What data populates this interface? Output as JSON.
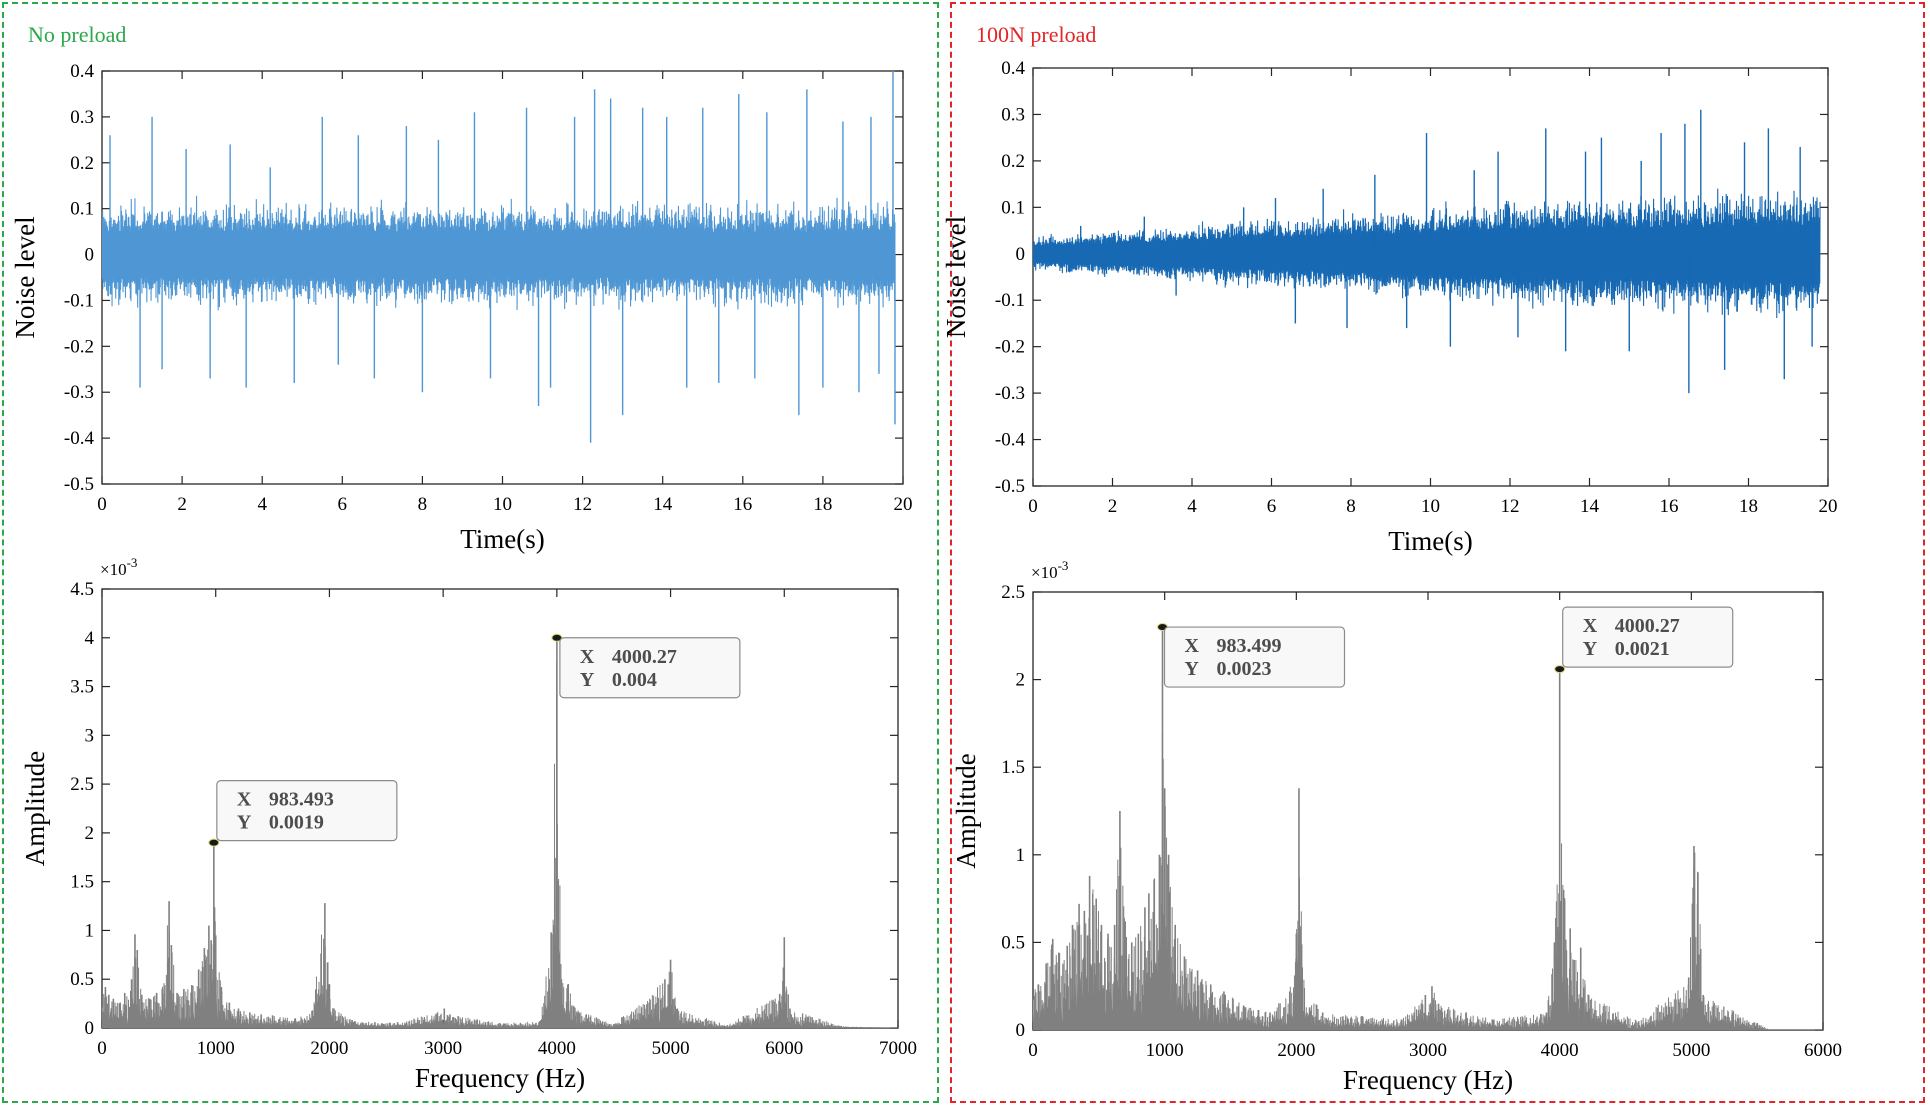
{
  "panels": [
    {
      "label": "No preload",
      "color": "#2aa84a"
    },
    {
      "label": "100N preload",
      "color": "#e0262a"
    }
  ],
  "chart_data": [
    {
      "panel": 0,
      "type": "line",
      "xlabel": "Time(s)",
      "ylabel": "Noise level",
      "xlim": [
        0,
        20
      ],
      "ylim": [
        -0.5,
        0.4
      ],
      "xticks": [
        0,
        2,
        4,
        6,
        8,
        10,
        12,
        14,
        16,
        18,
        20
      ],
      "yticks": [
        -0.5,
        -0.4,
        -0.3,
        -0.2,
        -0.1,
        0,
        0.1,
        0.2,
        0.3,
        0.4
      ],
      "series_color": "#4f97d4",
      "x_end": 19.8,
      "base_amplitude": [
        [
          0,
          0.09
        ],
        [
          19.8,
          0.09
        ]
      ],
      "spikes": [
        [
          0.2,
          0.26
        ],
        [
          0.95,
          -0.29
        ],
        [
          1.25,
          0.3
        ],
        [
          1.5,
          -0.25
        ],
        [
          2.1,
          0.23
        ],
        [
          2.7,
          -0.27
        ],
        [
          3.2,
          0.24
        ],
        [
          3.6,
          -0.29
        ],
        [
          4.2,
          0.19
        ],
        [
          4.8,
          -0.28
        ],
        [
          5.5,
          0.3
        ],
        [
          5.9,
          -0.24
        ],
        [
          6.4,
          0.26
        ],
        [
          6.8,
          -0.27
        ],
        [
          7.6,
          0.28
        ],
        [
          8.0,
          -0.3
        ],
        [
          8.4,
          0.25
        ],
        [
          9.3,
          0.31
        ],
        [
          9.7,
          -0.27
        ],
        [
          10.6,
          0.32
        ],
        [
          10.9,
          -0.33
        ],
        [
          11.2,
          -0.29
        ],
        [
          11.8,
          0.3
        ],
        [
          12.2,
          -0.41
        ],
        [
          12.3,
          0.36
        ],
        [
          12.7,
          0.34
        ],
        [
          13.0,
          -0.35
        ],
        [
          13.5,
          0.32
        ],
        [
          14.1,
          0.3
        ],
        [
          14.6,
          -0.29
        ],
        [
          15.0,
          0.32
        ],
        [
          15.4,
          -0.28
        ],
        [
          15.9,
          0.35
        ],
        [
          16.3,
          -0.27
        ],
        [
          16.6,
          0.31
        ],
        [
          17.4,
          -0.35
        ],
        [
          17.6,
          0.36
        ],
        [
          18.0,
          -0.29
        ],
        [
          18.5,
          0.29
        ],
        [
          18.9,
          -0.3
        ],
        [
          19.2,
          0.3
        ],
        [
          19.4,
          -0.26
        ],
        [
          19.75,
          0.4
        ],
        [
          19.8,
          -0.37
        ]
      ]
    },
    {
      "panel": 0,
      "type": "area",
      "xlabel": "Frequency (Hz)",
      "ylabel": "Amplitude",
      "exponent_label": "×10",
      "exponent_power": "-3",
      "xlim": [
        0,
        7000
      ],
      "ylim": [
        0,
        4.5
      ],
      "xticks": [
        0,
        1000,
        2000,
        3000,
        4000,
        5000,
        6000,
        7000
      ],
      "yticks": [
        0,
        0.5,
        1,
        1.5,
        2,
        2.5,
        3,
        3.5,
        4,
        4.5
      ],
      "series_color": "#808080",
      "peaks": [
        [
          30,
          0.42
        ],
        [
          60,
          0.34
        ],
        [
          100,
          0.3
        ],
        [
          160,
          0.26
        ],
        [
          200,
          0.36
        ],
        [
          260,
          0.5
        ],
        [
          290,
          0.96
        ],
        [
          310,
          0.8
        ],
        [
          350,
          0.34
        ],
        [
          420,
          0.3
        ],
        [
          480,
          0.36
        ],
        [
          530,
          0.4
        ],
        [
          590,
          1.3
        ],
        [
          610,
          0.85
        ],
        [
          660,
          0.36
        ],
        [
          720,
          0.4
        ],
        [
          790,
          0.44
        ],
        [
          850,
          0.6
        ],
        [
          900,
          0.82
        ],
        [
          940,
          1.05
        ],
        [
          960,
          0.9
        ],
        [
          983.493,
          1.9
        ],
        [
          1000,
          0.95
        ],
        [
          1050,
          0.42
        ],
        [
          1120,
          0.26
        ],
        [
          1200,
          0.2
        ],
        [
          1300,
          0.16
        ],
        [
          1400,
          0.14
        ],
        [
          1500,
          0.13
        ],
        [
          1700,
          0.1
        ],
        [
          1850,
          0.18
        ],
        [
          1960,
          1.28
        ],
        [
          2000,
          0.45
        ],
        [
          2040,
          0.2
        ],
        [
          2200,
          0.08
        ],
        [
          2400,
          0.06
        ],
        [
          2600,
          0.06
        ],
        [
          2950,
          0.16
        ],
        [
          3010,
          0.2
        ],
        [
          3060,
          0.14
        ],
        [
          3500,
          0.05
        ],
        [
          3850,
          0.07
        ],
        [
          3950,
          0.98
        ],
        [
          4000.27,
          4.0
        ],
        [
          4040,
          0.5
        ],
        [
          4100,
          0.45
        ],
        [
          4150,
          0.22
        ],
        [
          4500,
          0.04
        ],
        [
          4950,
          0.5
        ],
        [
          5000,
          0.7
        ],
        [
          5060,
          0.2
        ],
        [
          5500,
          0.03
        ],
        [
          5960,
          0.35
        ],
        [
          6000,
          0.93
        ],
        [
          6050,
          0.2
        ],
        [
          6500,
          0.02
        ],
        [
          7000,
          0.0
        ]
      ],
      "annotations": [
        {
          "x_label": "X",
          "x_value": "983.493",
          "y_label": "Y",
          "y_value": "0.0019",
          "x": 983.493,
          "y": 1.9
        },
        {
          "x_label": "X",
          "x_value": "4000.27",
          "y_label": "Y",
          "y_value": "0.004",
          "x": 4000.27,
          "y": 4.0
        }
      ]
    },
    {
      "panel": 1,
      "type": "line",
      "xlabel": "Time(s)",
      "ylabel": "Noise level",
      "xlim": [
        0,
        20
      ],
      "ylim": [
        -0.5,
        0.4
      ],
      "xticks": [
        0,
        2,
        4,
        6,
        8,
        10,
        12,
        14,
        16,
        18,
        20
      ],
      "yticks": [
        -0.5,
        -0.4,
        -0.3,
        -0.2,
        -0.1,
        0,
        0.1,
        0.2,
        0.3,
        0.4
      ],
      "series_color": "#1769b3",
      "x_end": 19.8,
      "base_amplitude": [
        [
          0,
          0.03
        ],
        [
          6,
          0.06
        ],
        [
          12,
          0.09
        ],
        [
          19.8,
          0.11
        ]
      ],
      "spikes": [
        [
          1.2,
          0.06
        ],
        [
          2.8,
          0.08
        ],
        [
          3.6,
          -0.09
        ],
        [
          5.3,
          0.1
        ],
        [
          6.1,
          0.12
        ],
        [
          6.6,
          -0.15
        ],
        [
          7.3,
          0.14
        ],
        [
          7.9,
          -0.16
        ],
        [
          8.6,
          0.17
        ],
        [
          9.4,
          -0.16
        ],
        [
          9.9,
          0.26
        ],
        [
          10.5,
          -0.2
        ],
        [
          11.1,
          0.18
        ],
        [
          11.7,
          0.22
        ],
        [
          12.2,
          -0.18
        ],
        [
          12.9,
          0.27
        ],
        [
          13.4,
          -0.21
        ],
        [
          13.9,
          0.22
        ],
        [
          14.3,
          0.25
        ],
        [
          15.0,
          -0.21
        ],
        [
          15.3,
          0.2
        ],
        [
          15.8,
          0.26
        ],
        [
          16.4,
          0.28
        ],
        [
          16.5,
          -0.3
        ],
        [
          16.8,
          0.31
        ],
        [
          17.4,
          -0.25
        ],
        [
          17.9,
          0.24
        ],
        [
          18.5,
          0.27
        ],
        [
          18.9,
          -0.27
        ],
        [
          19.3,
          0.23
        ],
        [
          19.6,
          -0.2
        ]
      ]
    },
    {
      "panel": 1,
      "type": "area",
      "xlabel": "Frequency (Hz)",
      "ylabel": "Amplitude",
      "exponent_label": "×10",
      "exponent_power": "-3",
      "xlim": [
        0,
        6000
      ],
      "ylim": [
        0,
        2.5
      ],
      "xticks": [
        0,
        1000,
        2000,
        3000,
        4000,
        5000,
        6000
      ],
      "yticks": [
        0,
        0.5,
        1,
        1.5,
        2,
        2.5
      ],
      "series_color": "#808080",
      "peaks": [
        [
          40,
          0.26
        ],
        [
          100,
          0.38
        ],
        [
          150,
          0.52
        ],
        [
          200,
          0.44
        ],
        [
          260,
          0.48
        ],
        [
          300,
          0.6
        ],
        [
          350,
          0.72
        ],
        [
          390,
          0.68
        ],
        [
          430,
          0.88
        ],
        [
          480,
          0.75
        ],
        [
          520,
          0.6
        ],
        [
          570,
          0.55
        ],
        [
          620,
          0.6
        ],
        [
          660,
          1.25
        ],
        [
          700,
          0.62
        ],
        [
          750,
          0.5
        ],
        [
          800,
          0.55
        ],
        [
          850,
          0.7
        ],
        [
          880,
          0.78
        ],
        [
          920,
          0.86
        ],
        [
          960,
          1.0
        ],
        [
          983.499,
          2.3
        ],
        [
          1000,
          1.38
        ],
        [
          1030,
          1.0
        ],
        [
          1080,
          0.6
        ],
        [
          1150,
          0.42
        ],
        [
          1250,
          0.34
        ],
        [
          1350,
          0.26
        ],
        [
          1450,
          0.22
        ],
        [
          1600,
          0.14
        ],
        [
          1800,
          0.1
        ],
        [
          1950,
          0.22
        ],
        [
          2000,
          0.55
        ],
        [
          2020,
          1.38
        ],
        [
          2060,
          0.24
        ],
        [
          2200,
          0.1
        ],
        [
          2500,
          0.08
        ],
        [
          2800,
          0.06
        ],
        [
          2980,
          0.2
        ],
        [
          3030,
          0.25
        ],
        [
          3080,
          0.15
        ],
        [
          3500,
          0.06
        ],
        [
          3900,
          0.1
        ],
        [
          3960,
          0.5
        ],
        [
          4000.27,
          2.06
        ],
        [
          4030,
          0.8
        ],
        [
          4080,
          0.58
        ],
        [
          4110,
          0.4
        ],
        [
          4160,
          0.47
        ],
        [
          4220,
          0.2
        ],
        [
          4600,
          0.05
        ],
        [
          4980,
          0.3
        ],
        [
          5020,
          1.05
        ],
        [
          5050,
          0.9
        ],
        [
          5090,
          0.2
        ],
        [
          5500,
          0.04
        ],
        [
          5600,
          0.0
        ]
      ],
      "annotations": [
        {
          "x_label": "X",
          "x_value": "983.499",
          "y_label": "Y",
          "y_value": "0.0023",
          "x": 983.499,
          "y": 2.3
        },
        {
          "x_label": "X",
          "x_value": "4000.27",
          "y_label": "Y",
          "y_value": "0.0021",
          "x": 4000.27,
          "y": 2.06
        }
      ]
    }
  ]
}
